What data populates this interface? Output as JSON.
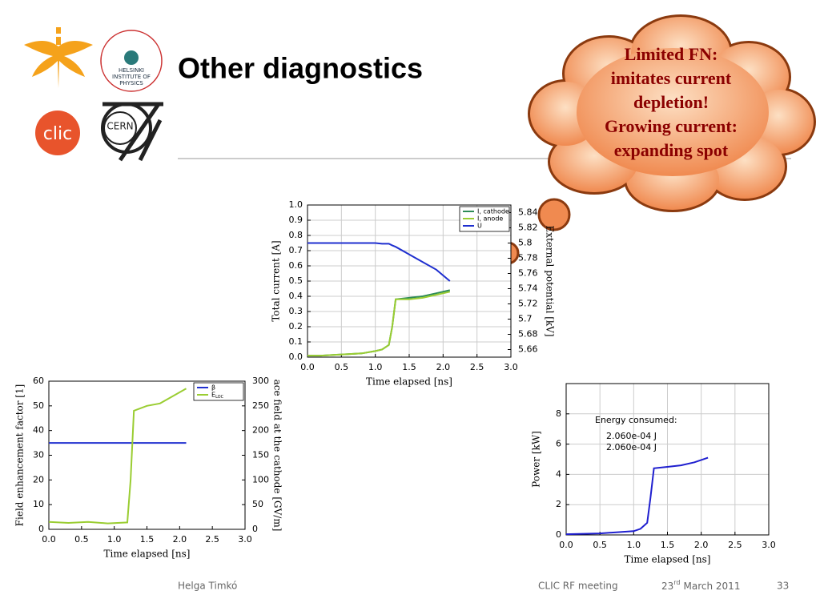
{
  "slide": {
    "title": "Other diagnostics",
    "callout": [
      "Limited FN:",
      "imitates current",
      "depletion!",
      "Growing current:",
      "expanding spot"
    ],
    "footer": {
      "author": "Helga Timkó",
      "meeting": "CLIC RF meeting",
      "date_day": "23",
      "date_sup": "rd",
      "date_rest": "March 2011",
      "page": "33"
    }
  },
  "logos": {
    "hip": [
      "HELSINKI",
      "INSTITUTE OF",
      "PHYSICS"
    ],
    "clic": "clic",
    "cern": "CERN"
  },
  "chart_data": [
    {
      "type": "line",
      "xlabel": "Time elapsed [ns]",
      "ylabel": "Total current [A]",
      "y2label": "External potential [kV]",
      "x": [
        0,
        0.2,
        0.4,
        0.6,
        0.8,
        1.0,
        1.1,
        1.2,
        1.25,
        1.3,
        1.5,
        1.7,
        1.9,
        2.1
      ],
      "series": [
        {
          "name": "I, cathode",
          "color": "#2e8b57",
          "values": [
            0.01,
            0.01,
            0.015,
            0.02,
            0.025,
            0.04,
            0.05,
            0.08,
            0.2,
            0.38,
            0.39,
            0.4,
            0.42,
            0.44
          ]
        },
        {
          "name": "I, anode",
          "color": "#9acd32",
          "values": [
            0.01,
            0.01,
            0.015,
            0.02,
            0.025,
            0.04,
            0.05,
            0.08,
            0.2,
            0.38,
            0.38,
            0.39,
            0.41,
            0.43
          ]
        },
        {
          "name": "U",
          "color": "#1f2fcf",
          "axis": "y2",
          "values": [
            5.8,
            5.8,
            5.8,
            5.8,
            5.8,
            5.8,
            5.799,
            5.799,
            5.797,
            5.795,
            5.785,
            5.775,
            5.765,
            5.75
          ]
        }
      ],
      "xlim": [
        0,
        3
      ],
      "xticks": [
        {
          "value": 0,
          "label": "0.0"
        },
        0.5,
        {
          "value": 1,
          "label": "1.0"
        },
        1.5,
        {
          "value": 2,
          "label": "2.0"
        },
        2.5,
        {
          "value": 3,
          "label": "3.0"
        }
      ],
      "ylim": [
        0,
        1
      ],
      "yticks": [
        {
          "value": 0,
          "label": "0.0"
        },
        0.1,
        0.2,
        0.3,
        0.4,
        0.5,
        0.6,
        0.7,
        0.8,
        0.9,
        {
          "value": 1,
          "label": "1.0"
        }
      ],
      "y2lim": [
        5.65,
        5.85
      ],
      "y2ticks": [
        5.66,
        5.68,
        5.7,
        5.72,
        5.74,
        5.76,
        5.78,
        5.8,
        5.82,
        5.84
      ],
      "grid": true,
      "legend": "upper right"
    },
    {
      "type": "line",
      "xlabel": "Time elapsed [ns]",
      "ylabel": "Field enhancement factor [1]",
      "y2label": "ace field at the cathode [GV/m]",
      "x": [
        0,
        0.3,
        0.6,
        0.9,
        1.2,
        1.25,
        1.3,
        1.5,
        1.7,
        1.9,
        2.1
      ],
      "series": [
        {
          "name": "β",
          "color": "#1f2fcf",
          "values": [
            35,
            35,
            35,
            35,
            35,
            35,
            35,
            35,
            35,
            35,
            35
          ]
        },
        {
          "name": "E",
          "name_sub": "LOC",
          "color": "#9acd32",
          "axis": "y2",
          "values": [
            15,
            13,
            15,
            12,
            14,
            100,
            240,
            250,
            255,
            270,
            285
          ]
        }
      ],
      "xlim": [
        0,
        3
      ],
      "xticks": [
        {
          "value": 0,
          "label": "0.0"
        },
        0.5,
        {
          "value": 1,
          "label": "1.0"
        },
        1.5,
        {
          "value": 2,
          "label": "2.0"
        },
        2.5,
        {
          "value": 3,
          "label": "3.0"
        }
      ],
      "ylim": [
        0,
        60
      ],
      "yticks": [
        0,
        10,
        20,
        30,
        40,
        50,
        60
      ],
      "y2lim": [
        0,
        300
      ],
      "y2ticks": [
        0,
        50,
        100,
        150,
        200,
        250,
        300
      ],
      "grid": false,
      "legend": "upper right"
    },
    {
      "type": "line",
      "xlabel": "Time elapsed [ns]",
      "ylabel": "Power [kW]",
      "x": [
        0,
        0.5,
        1.0,
        1.1,
        1.2,
        1.25,
        1.3,
        1.5,
        1.7,
        1.9,
        2.1
      ],
      "series": [
        {
          "color": "#1f1fcf",
          "values": [
            0.05,
            0.1,
            0.25,
            0.4,
            0.8,
            2.5,
            4.4,
            4.5,
            4.6,
            4.8,
            5.1
          ]
        }
      ],
      "annotations": [
        {
          "text": "Energy consumed:",
          "color": "#000000"
        },
        {
          "text": "2.060e-04 J",
          "color": "#1f2fcf"
        },
        {
          "text": "2.060e-04 J",
          "color": "#d0204a"
        }
      ],
      "xlim": [
        0,
        3
      ],
      "xticks": [
        {
          "value": 0,
          "label": "0.0"
        },
        0.5,
        {
          "value": 1,
          "label": "1.0"
        },
        1.5,
        {
          "value": 2,
          "label": "2.0"
        },
        2.5,
        {
          "value": 3,
          "label": "3.0"
        }
      ],
      "ylim": [
        0,
        10
      ],
      "yticks": [
        0,
        2,
        4,
        6,
        8
      ],
      "grid": true
    }
  ]
}
